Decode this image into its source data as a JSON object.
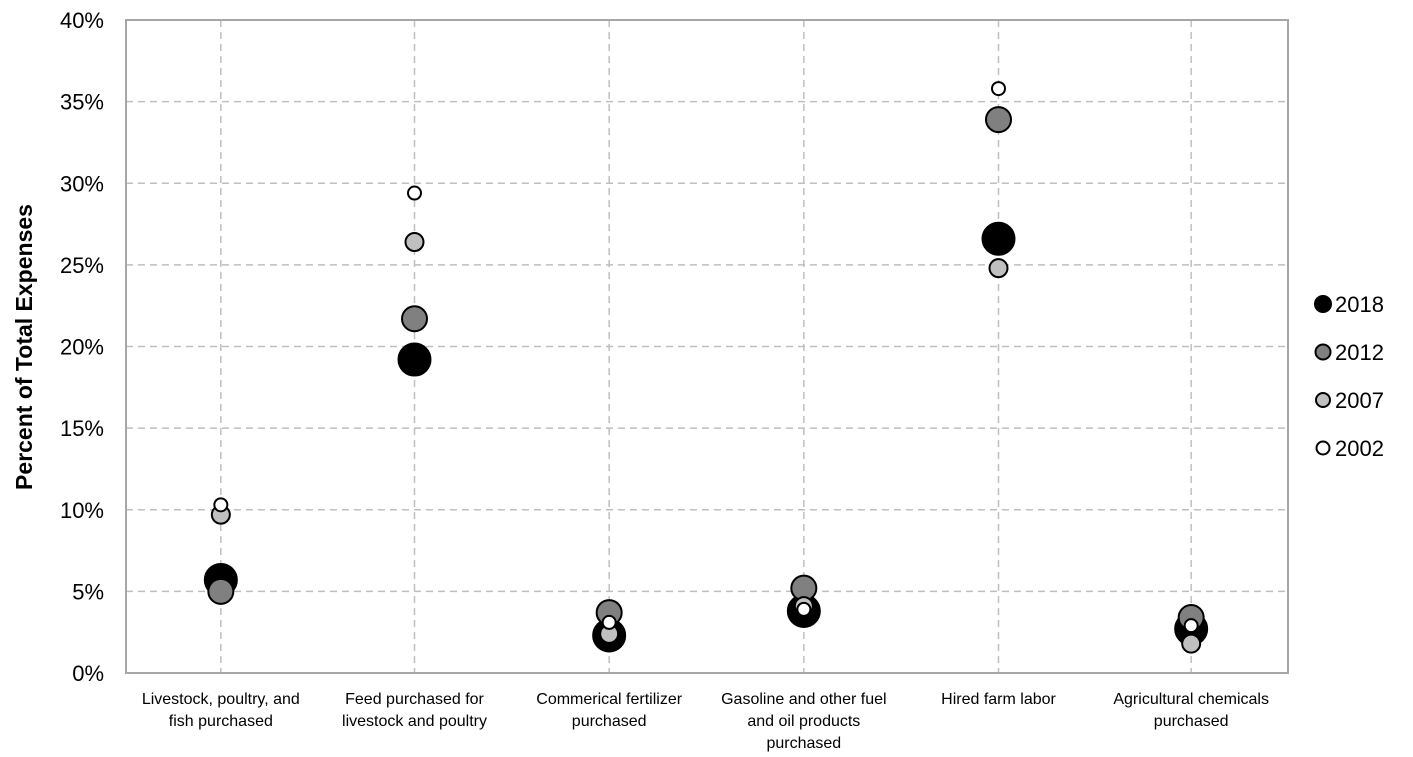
{
  "chart_data": {
    "type": "scatter",
    "ylabel": "Percent of Total Expenses",
    "xlabel": "",
    "ylim": [
      0,
      40
    ],
    "yticks": [
      {
        "value": 0,
        "label": "0%"
      },
      {
        "value": 5,
        "label": "5%"
      },
      {
        "value": 10,
        "label": "10%"
      },
      {
        "value": 15,
        "label": "15%"
      },
      {
        "value": 20,
        "label": "20%"
      },
      {
        "value": 25,
        "label": "25%"
      },
      {
        "value": 30,
        "label": "30%"
      },
      {
        "value": 35,
        "label": "35%"
      },
      {
        "value": 40,
        "label": "40%"
      }
    ],
    "categories": [
      [
        "Livestock, poultry, and",
        "fish purchased"
      ],
      [
        "Feed purchased for",
        "livestock and poultry"
      ],
      [
        "Commerical fertilizer",
        "purchased"
      ],
      [
        "Gasoline and other fuel",
        "and oil products",
        "purchased"
      ],
      [
        "Hired farm labor"
      ],
      [
        "Agricultural chemicals",
        "purchased"
      ]
    ],
    "grid": true,
    "legend_position": "right",
    "series": [
      {
        "name": "2018",
        "color": "#000000",
        "size": "large",
        "values": [
          5.7,
          19.2,
          2.3,
          3.8,
          26.6,
          2.7
        ]
      },
      {
        "name": "2012",
        "color": "#808080",
        "size": "medium",
        "values": [
          5.0,
          21.7,
          3.7,
          5.2,
          33.9,
          3.4
        ]
      },
      {
        "name": "2007",
        "color": "#c0c0c0",
        "size": "small",
        "values": [
          9.7,
          26.4,
          2.4,
          4.1,
          24.8,
          1.8
        ]
      },
      {
        "name": "2002",
        "color": "#ffffff",
        "size": "smallest",
        "values": [
          10.3,
          29.4,
          3.1,
          3.9,
          35.8,
          2.9
        ]
      }
    ]
  }
}
